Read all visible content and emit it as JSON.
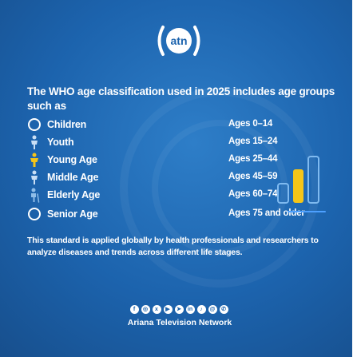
{
  "logo": {
    "icon": "atn-broadcast-logo",
    "text": "atn"
  },
  "headline": "The WHO age classification used in 2025 includes age groups such as",
  "groups": [
    {
      "icon": "circle-outline-icon",
      "label": "Children",
      "age": "Ages 0–14"
    },
    {
      "icon": "person-icon",
      "label": "Youth",
      "age": "Ages 15–24"
    },
    {
      "icon": "person-yellow-icon",
      "label": "Young Age",
      "age": "Ages 25–44"
    },
    {
      "icon": "person-icon",
      "label": "Middle Age",
      "age": "Ages 45–59"
    },
    {
      "icon": "elderly-person-icon",
      "label": "Elderly Age",
      "age": "Ages 60–74"
    },
    {
      "icon": "circle-outline-icon",
      "label": "Senior Age",
      "age": "Ages 75 and older"
    }
  ],
  "footnote": "This standard is applied globally by health professionals and researchers to analyze diseases and trends across different life stages.",
  "socials": [
    "facebook-icon",
    "instagram-icon",
    "x-icon",
    "youtube-icon",
    "telegram-icon",
    "linkedin-icon",
    "tiktok-icon",
    "threads-icon",
    "whatsapp-icon"
  ],
  "network": "Ariana Television Network",
  "colors": {
    "background": "#1c63ad",
    "accent_yellow": "#f5c518",
    "accent_light_blue": "#5aa9f2"
  }
}
